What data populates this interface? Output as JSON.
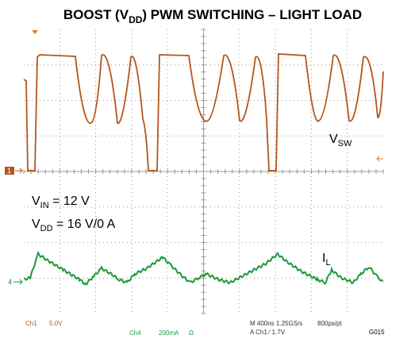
{
  "title": {
    "pre": "BOOST (V",
    "sub": "DD",
    "post": ") PWM SWITCHING – LIGHT LOAD"
  },
  "labels": {
    "vsw": {
      "main": "V",
      "sub": "SW"
    },
    "vin": {
      "main": "V",
      "sub": "IN",
      "rest": " = 12 V"
    },
    "vdd": {
      "main": "V",
      "sub": "DD",
      "rest": " = 16 V/0 A"
    },
    "il": {
      "main": "I",
      "sub": "L"
    }
  },
  "markers": {
    "ch1": "1",
    "ch4": "4"
  },
  "footer": {
    "ch1": "Ch1",
    "ch1_scale": "5.0V",
    "ch4": "Ch4",
    "ch4_scale": "200mA",
    "ch4_ohm": "Ω",
    "timebase": "M 400ns 1.25GS/s",
    "points": "800ps/pt",
    "trigger": "A  Ch1  ⁄  1.7V",
    "figure_id": "G015"
  }
}
